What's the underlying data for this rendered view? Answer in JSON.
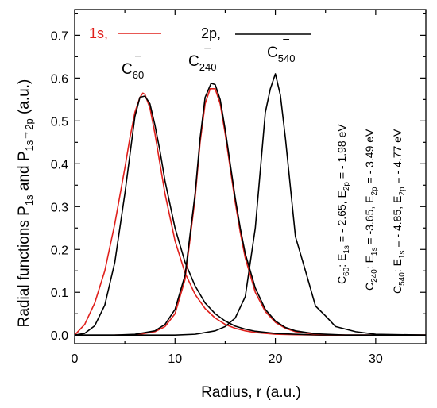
{
  "chart_data": {
    "type": "line",
    "xlabel": "Radius, r (a.u.)",
    "ylabel": {
      "prefix": "Radial functions P",
      "sub1": "1s",
      "middle": " and P",
      "sub2": "1s",
      "arrow": "→",
      "sub3": "2p",
      "suffix": " (a.u.)"
    },
    "xlim": [
      0,
      35
    ],
    "ylim": [
      -0.02,
      0.76
    ],
    "xticks": [
      0,
      10,
      20,
      30
    ],
    "xtick_labels": [
      "0",
      "10",
      "20",
      "30"
    ],
    "yticks": [
      0.0,
      0.1,
      0.2,
      0.3,
      0.4,
      0.5,
      0.6,
      0.7
    ],
    "ytick_labels": [
      "0.0",
      "0.1",
      "0.2",
      "0.3",
      "0.4",
      "0.5",
      "0.6",
      "0.7"
    ],
    "grid": false,
    "legend": {
      "position": "top",
      "entries": [
        {
          "label": "1s,",
          "color": "#e0201c"
        },
        {
          "label": "2p,",
          "color": "#000000"
        }
      ]
    },
    "molecule_labels": [
      {
        "base": "C",
        "sub": "60",
        "sup": "−"
      },
      {
        "base": "C",
        "sub": "240",
        "sup": "−"
      },
      {
        "base": "C",
        "sub": "540",
        "sup": "−"
      }
    ],
    "energy_annotations": [
      {
        "mol_sub": "60",
        "e1s_label": "E",
        "e1s_sub": "1s",
        "e1s_value": " = - 2.65, ",
        "e2p_label": "E",
        "e2p_sub": "2p",
        "e2p_value": " = - 1.98 eV"
      },
      {
        "mol_sub": "240",
        "e1s_label": "E",
        "e1s_sub": "1s",
        "e1s_value": " = -3.65, ",
        "e2p_label": "E",
        "e2p_sub": "2p",
        "e2p_value": " = - 3.49 eV"
      },
      {
        "mol_sub": "540",
        "e1s_label": "E",
        "e1s_sub": "1s",
        "e1s_value": " = - 4.85, ",
        "e2p_label": "E",
        "e2p_sub": "2p",
        "e2p_value": " = - 4.77 eV"
      }
    ],
    "series": [
      {
        "name": "1s",
        "color": "#e0201c",
        "x": [
          0.0,
          1.0,
          2.0,
          3.0,
          4.0,
          5.0,
          5.5,
          6.0,
          6.5,
          6.8,
          7.0,
          7.5,
          8.0,
          8.5,
          9.0,
          10.0,
          11.0,
          12.0,
          13.0,
          14.0,
          15.0,
          16.0,
          17.0,
          18.0,
          20.0,
          22.0,
          25.0,
          30.0,
          35.0
        ],
        "y": [
          0.0,
          0.025,
          0.075,
          0.15,
          0.26,
          0.39,
          0.46,
          0.52,
          0.555,
          0.565,
          0.562,
          0.53,
          0.47,
          0.4,
          0.33,
          0.22,
          0.145,
          0.095,
          0.062,
          0.04,
          0.025,
          0.016,
          0.01,
          0.006,
          0.002,
          0.001,
          0.0,
          0.0,
          0.0
        ]
      },
      {
        "name": "2p C60",
        "color": "#000000",
        "x": [
          0.0,
          1.0,
          2.0,
          3.0,
          4.0,
          5.0,
          5.5,
          6.0,
          6.5,
          7.0,
          7.5,
          8.0,
          8.5,
          9.0,
          10.0,
          11.0,
          12.0,
          13.0,
          14.0,
          15.0,
          16.0,
          17.0,
          18.0,
          20.0,
          22.0,
          25.0,
          30.0,
          35.0
        ],
        "y": [
          0.0,
          0.004,
          0.022,
          0.07,
          0.17,
          0.33,
          0.42,
          0.51,
          0.555,
          0.558,
          0.54,
          0.49,
          0.43,
          0.36,
          0.25,
          0.17,
          0.115,
          0.075,
          0.05,
          0.033,
          0.021,
          0.014,
          0.009,
          0.004,
          0.002,
          0.0,
          0.0,
          0.0
        ]
      },
      {
        "name": "1s C240",
        "color": "#e0201c",
        "x": [
          4.0,
          6.0,
          8.0,
          9.0,
          10.0,
          11.0,
          12.0,
          12.5,
          13.0,
          13.5,
          14.0,
          14.5,
          15.0,
          15.5,
          16.0,
          16.5,
          17.0,
          18.0,
          19.0,
          20.0,
          21.0,
          22.0,
          24.0,
          27.0,
          35.0
        ],
        "y": [
          0.0,
          0.0,
          0.008,
          0.02,
          0.05,
          0.13,
          0.32,
          0.45,
          0.54,
          0.575,
          0.575,
          0.54,
          0.47,
          0.39,
          0.31,
          0.24,
          0.18,
          0.1,
          0.055,
          0.03,
          0.016,
          0.008,
          0.002,
          0.0,
          0.0
        ]
      },
      {
        "name": "2p C240",
        "color": "#000000",
        "x": [
          0.0,
          4.0,
          6.0,
          8.0,
          9.0,
          10.0,
          11.0,
          12.0,
          12.5,
          13.0,
          13.6,
          14.0,
          14.5,
          15.0,
          15.5,
          16.0,
          16.5,
          17.0,
          18.0,
          19.0,
          20.0,
          21.0,
          22.0,
          24.0,
          27.0,
          35.0
        ],
        "y": [
          0.0,
          0.0,
          0.002,
          0.01,
          0.025,
          0.06,
          0.14,
          0.33,
          0.46,
          0.555,
          0.588,
          0.585,
          0.55,
          0.48,
          0.4,
          0.32,
          0.25,
          0.19,
          0.11,
          0.06,
          0.033,
          0.018,
          0.01,
          0.003,
          0.0,
          0.0
        ]
      },
      {
        "name": "2p C540",
        "color": "#000000",
        "x": [
          0.0,
          10.0,
          12.0,
          14.0,
          15.0,
          16.0,
          17.0,
          18.0,
          19.0,
          19.5,
          20.0,
          20.5,
          21.0,
          22.0,
          23.0,
          24.0,
          25.0,
          26.0,
          28.0,
          30.0,
          35.0
        ],
        "y": [
          0.0,
          0.0,
          0.002,
          0.01,
          0.02,
          0.04,
          0.09,
          0.25,
          0.52,
          0.575,
          0.61,
          0.56,
          0.46,
          0.23,
          0.15,
          0.068,
          0.045,
          0.02,
          0.008,
          0.002,
          0.0
        ]
      }
    ]
  }
}
